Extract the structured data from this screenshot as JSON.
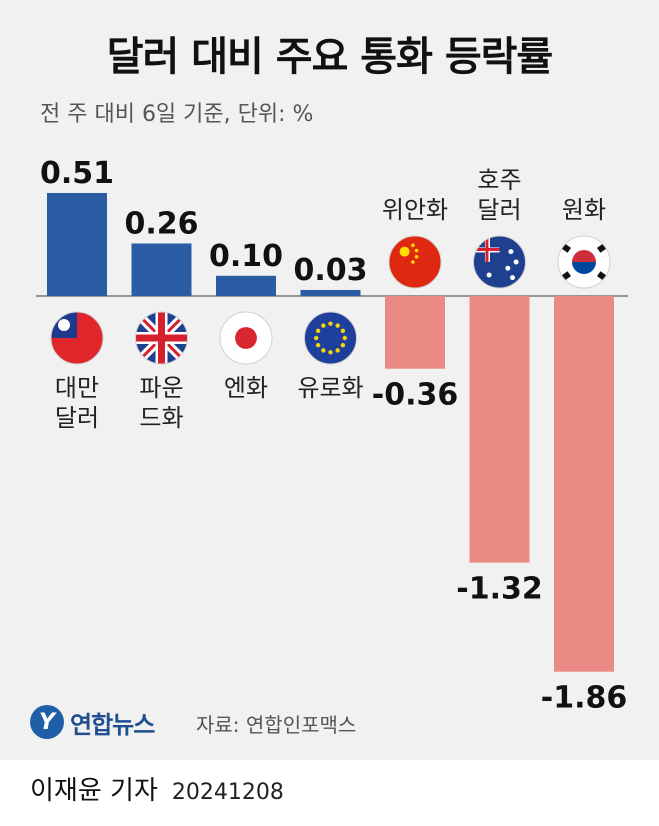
{
  "title": "달러 대비 주요 통화 등락률",
  "subtitle": "전 주 대비 6일 기준, 단위: %",
  "source": "자료: 연합인포맥스",
  "logo_text": "연합뉴스",
  "logo_mark": "Y",
  "reporter": "이재윤 기자",
  "date": "20241208",
  "colors": {
    "positive": "#2a5da3",
    "negative": "#e98b84",
    "background": "#f1f1f1",
    "baseline": "#777777"
  },
  "chart_data": {
    "type": "bar",
    "title": "달러 대비 주요 통화 등락률",
    "subtitle": "전 주 대비 6일 기준, 단위: %",
    "categories": [
      "대만 달러",
      "파운드화",
      "엔화",
      "유로화",
      "위안화",
      "호주 달러",
      "원화"
    ],
    "category_lines": [
      [
        "대만",
        "달러"
      ],
      [
        "파운",
        "드화"
      ],
      [
        "엔화"
      ],
      [
        "유로화"
      ],
      [
        "위안화"
      ],
      [
        "호주",
        "달러"
      ],
      [
        "원화"
      ]
    ],
    "values": [
      0.51,
      0.26,
      0.1,
      0.03,
      -0.36,
      -1.32,
      -1.86
    ],
    "value_labels": [
      "0.51",
      "0.26",
      "0.10",
      "0.03",
      "-0.36",
      "-1.32",
      "-1.86"
    ],
    "flags": [
      "taiwan-flag-icon",
      "uk-flag-icon",
      "japan-flag-icon",
      "eu-flag-icon",
      "china-flag-icon",
      "australia-flag-icon",
      "korea-flag-icon"
    ],
    "ylim": [
      -1.86,
      0.51
    ],
    "grid": false,
    "legend": "none"
  }
}
